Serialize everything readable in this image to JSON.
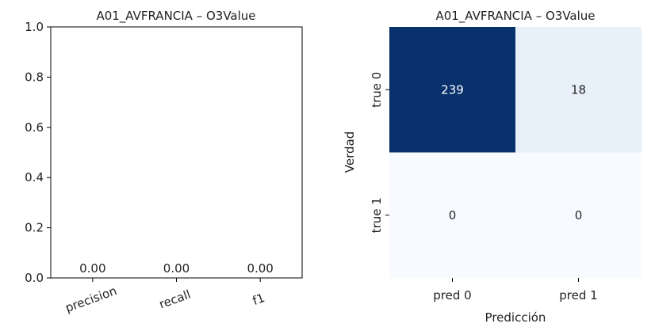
{
  "chart_data": [
    {
      "type": "bar",
      "title": "A01_AVFRANCIA – O3Value",
      "categories": [
        "precision",
        "recall",
        "f1"
      ],
      "values": [
        0.0,
        0.0,
        0.0
      ],
      "value_labels": [
        "0.00",
        "0.00",
        "0.00"
      ],
      "ylim": [
        0,
        1.0
      ],
      "yticks": [
        "0.0",
        "0.2",
        "0.4",
        "0.6",
        "0.8",
        "1.0"
      ],
      "xlabel": "",
      "ylabel": "",
      "grid": false
    },
    {
      "type": "heatmap",
      "title": "A01_AVFRANCIA – O3Value",
      "xlabel": "Predicción",
      "ylabel": "Verdad",
      "x_categories": [
        "pred 0",
        "pred 1"
      ],
      "y_categories": [
        "true 0",
        "true 1"
      ],
      "values": [
        [
          239,
          18
        ],
        [
          0,
          0
        ]
      ],
      "colormap": "Blues",
      "colors": {
        "low": "#f7fbff",
        "high": "#08306b"
      }
    }
  ]
}
